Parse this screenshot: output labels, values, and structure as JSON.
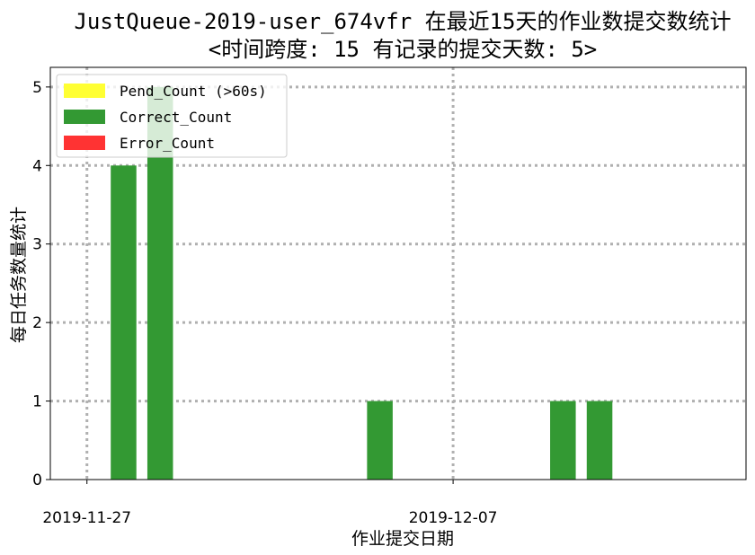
{
  "chart_data": {
    "type": "bar",
    "title_line1": "JustQueue-2019-user_674vfr 在最近15天的作业数提交数统计",
    "title_line2": "<时间跨度: 15  有记录的提交天数: 5>",
    "xlabel": "作业提交日期",
    "ylabel": "每日任务数量统计",
    "ylim": [
      0,
      5.25
    ],
    "yticks": [
      0,
      1,
      2,
      3,
      4,
      5
    ],
    "xlim_dates": [
      "2019-11-26",
      "2019-12-15"
    ],
    "xticks": [
      "2019-11-27",
      "2019-12-07"
    ],
    "grid": true,
    "legend_position": "top-left",
    "categories": [
      "2019-11-28",
      "2019-11-29",
      "2019-12-05",
      "2019-12-10",
      "2019-12-11"
    ],
    "series": [
      {
        "name": "Pend_Count (>60s)",
        "color": "#ffff33",
        "values": [
          0,
          0,
          0,
          0,
          0
        ]
      },
      {
        "name": "Correct_Count",
        "color": "#339933",
        "values": [
          4,
          5,
          1,
          1,
          1
        ]
      },
      {
        "name": "Error_Count",
        "color": "#ff3333",
        "values": [
          0,
          0,
          0,
          0,
          0
        ]
      }
    ]
  }
}
